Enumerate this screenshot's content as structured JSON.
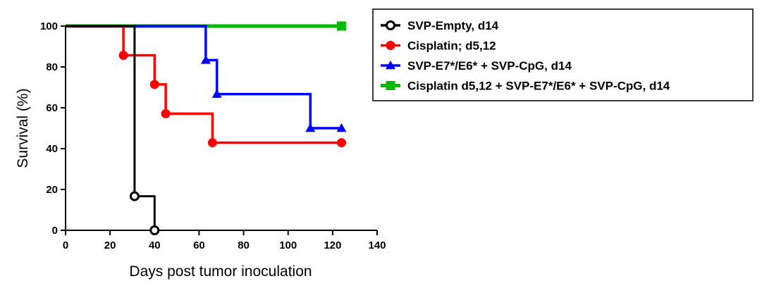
{
  "chart_data": {
    "type": "line",
    "subtype": "kaplan-meier-step",
    "title": "",
    "xlabel": "Days post tumor inoculation",
    "ylabel": "Survival (%)",
    "xlim": [
      0,
      140
    ],
    "ylim": [
      0,
      100
    ],
    "xticks": [
      0,
      20,
      40,
      60,
      80,
      100,
      120,
      140
    ],
    "yticks": [
      0,
      20,
      40,
      60,
      80,
      100
    ],
    "grid": false,
    "legend_position": "right",
    "series": [
      {
        "name": "SVP-Empty, d14",
        "color": "#000000",
        "marker": "open-circle",
        "steps": [
          [
            0,
            100
          ],
          [
            31,
            100
          ],
          [
            31,
            16.7
          ],
          [
            40,
            16.7
          ],
          [
            40,
            0
          ]
        ],
        "markers": [
          [
            31,
            16.7
          ],
          [
            40,
            0
          ]
        ]
      },
      {
        "name": "Cisplatin; d5,12",
        "color": "#ff0000",
        "marker": "filled-circle",
        "steps": [
          [
            0,
            100
          ],
          [
            26,
            100
          ],
          [
            26,
            85.7
          ],
          [
            40,
            85.7
          ],
          [
            40,
            71.4
          ],
          [
            45,
            71.4
          ],
          [
            45,
            57.1
          ],
          [
            66,
            57.1
          ],
          [
            66,
            42.9
          ],
          [
            124,
            42.9
          ]
        ],
        "markers": [
          [
            26,
            85.7
          ],
          [
            40,
            71.4
          ],
          [
            45,
            57.1
          ],
          [
            66,
            42.9
          ],
          [
            124,
            42.9
          ]
        ]
      },
      {
        "name": "SVP-E7*/E6* + SVP-CpG, d14",
        "color": "#0000ff",
        "marker": "filled-triangle",
        "steps": [
          [
            0,
            100
          ],
          [
            63,
            100
          ],
          [
            63,
            83.3
          ],
          [
            68,
            83.3
          ],
          [
            68,
            66.7
          ],
          [
            110,
            66.7
          ],
          [
            110,
            50
          ],
          [
            124,
            50
          ]
        ],
        "markers": [
          [
            63,
            83.3
          ],
          [
            68,
            66.7
          ],
          [
            110,
            50
          ],
          [
            124,
            50
          ]
        ]
      },
      {
        "name": "Cisplatin d5,12 + SVP-E7*/E6* + SVP-CpG, d14",
        "color": "#00bb00",
        "marker": "filled-square",
        "steps": [
          [
            0,
            100
          ],
          [
            124,
            100
          ]
        ],
        "markers": [
          [
            124,
            100
          ]
        ]
      }
    ]
  }
}
